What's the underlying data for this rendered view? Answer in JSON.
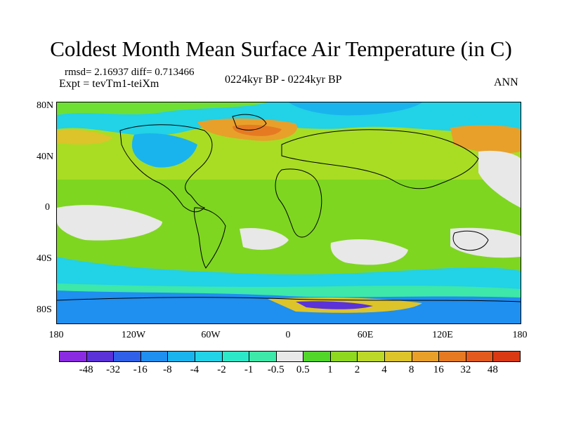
{
  "title": "Coldest Month Mean Surface Air Temperature (in C)",
  "stats": "rmsd= 2.16937 diff= 0.713466",
  "experiment": "Expt = tevTm1-teiXm",
  "period": "0224kyr BP - 0224kyr BP",
  "season": "ANN",
  "axes": {
    "y_ticks": [
      "80N",
      "40N",
      "0",
      "40S",
      "80S"
    ],
    "x_ticks": [
      "180",
      "120W",
      "60W",
      "0",
      "60E",
      "120E",
      "180"
    ]
  },
  "colorbar": {
    "labels": [
      "-48",
      "-32",
      "-16",
      "-8",
      "-4",
      "-2",
      "-1",
      "-0.5",
      "0.5",
      "1",
      "2",
      "4",
      "8",
      "16",
      "32",
      "48"
    ],
    "colors": [
      "#8a2be2",
      "#5a32d8",
      "#3060e8",
      "#1f8ff0",
      "#19b4ee",
      "#22d2e6",
      "#2de8c8",
      "#3de8a8",
      "#e8e8e8",
      "#52d62a",
      "#8ed820",
      "#bcd828",
      "#dcc42a",
      "#e8a02a",
      "#e67a22",
      "#e25a1e",
      "#d93a14"
    ]
  }
}
